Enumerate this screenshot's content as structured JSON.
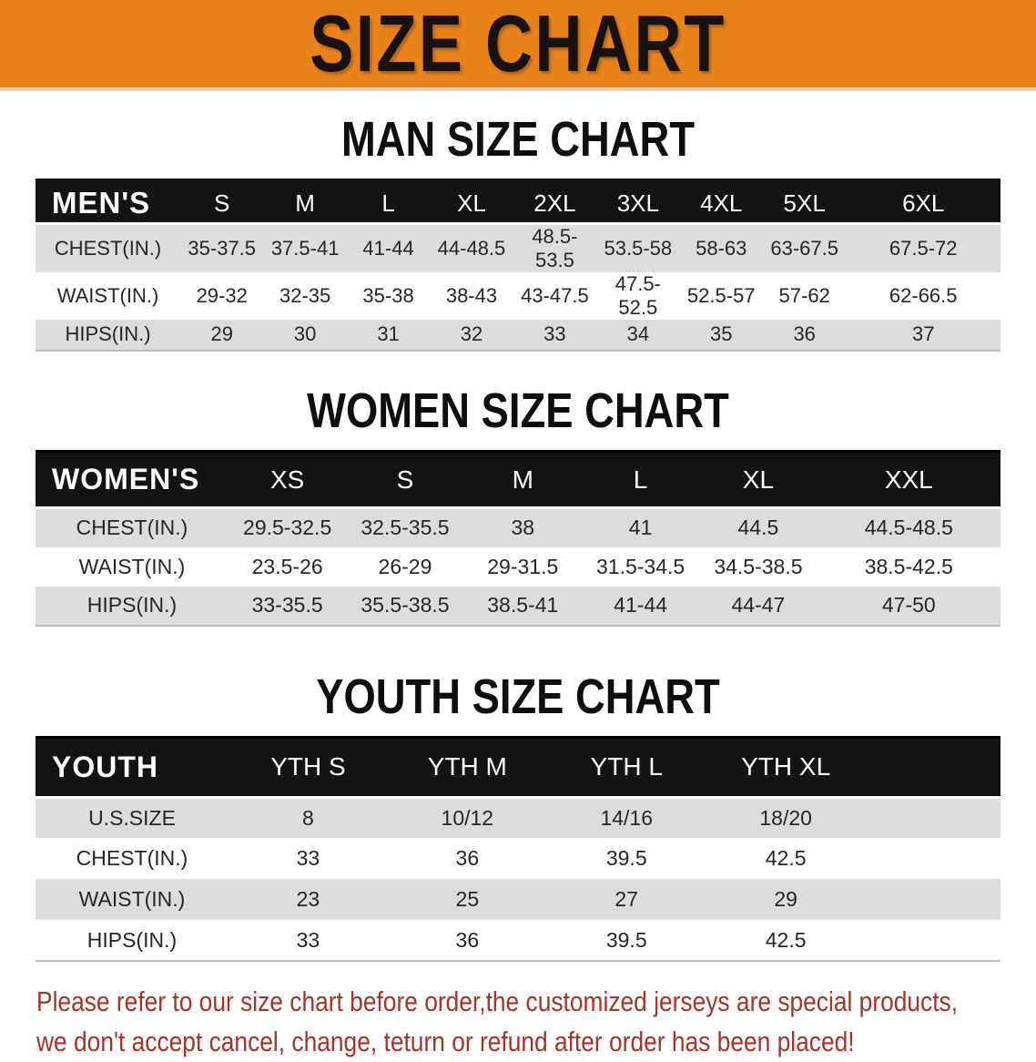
{
  "banner": {
    "title": "SIZE CHART"
  },
  "colors": {
    "banner_orange": "#E8831C",
    "header_black": "#141414",
    "row_gray": "#DCDCDC",
    "warning_red": "#A93226"
  },
  "sections": [
    {
      "heading": "MAN SIZE CHART",
      "table": {
        "corner": "MEN'S",
        "columns": [
          "S",
          "M",
          "L",
          "XL",
          "2XL",
          "3XL",
          "4XL",
          "5XL",
          "6XL"
        ],
        "rows": [
          {
            "label": "CHEST(IN.)",
            "values": [
              "35-37.5",
              "37.5-41",
              "41-44",
              "44-48.5",
              "48.5-53.5",
              "53.5-58",
              "58-63",
              "63-67.5",
              "67.5-72"
            ]
          },
          {
            "label": "WAIST(IN.)",
            "values": [
              "29-32",
              "32-35",
              "35-38",
              "38-43",
              "43-47.5",
              "47.5-52.5",
              "52.5-57",
              "57-62",
              "62-66.5"
            ]
          },
          {
            "label": "HIPS(IN.)",
            "values": [
              "29",
              "30",
              "31",
              "32",
              "33",
              "34",
              "35",
              "36",
              "37"
            ]
          }
        ]
      }
    },
    {
      "heading": "WOMEN SIZE CHART",
      "table": {
        "corner": "WOMEN'S",
        "columns": [
          "XS",
          "S",
          "M",
          "L",
          "XL",
          "XXL"
        ],
        "rows": [
          {
            "label": "CHEST(IN.)",
            "values": [
              "29.5-32.5",
              "32.5-35.5",
              "38",
              "41",
              "44.5",
              "44.5-48.5"
            ]
          },
          {
            "label": "WAIST(IN.)",
            "values": [
              "23.5-26",
              "26-29",
              "29-31.5",
              "31.5-34.5",
              "34.5-38.5",
              "38.5-42.5"
            ]
          },
          {
            "label": "HIPS(IN.)",
            "values": [
              "33-35.5",
              "35.5-38.5",
              "38.5-41",
              "41-44",
              "44-47",
              "47-50"
            ]
          }
        ]
      }
    },
    {
      "heading": "YOUTH SIZE CHART",
      "table": {
        "corner": "YOUTH",
        "columns": [
          "YTH S",
          "YTH M",
          "YTH L",
          "YTH XL"
        ],
        "rows": [
          {
            "label": "U.S.SIZE",
            "values": [
              "8",
              "10/12",
              "14/16",
              "18/20"
            ]
          },
          {
            "label": "CHEST(IN.)",
            "values": [
              "33",
              "36",
              "39.5",
              "42.5"
            ]
          },
          {
            "label": "WAIST(IN.)",
            "values": [
              "23",
              "25",
              "27",
              "29"
            ]
          },
          {
            "label": "HIPS(IN.)",
            "values": [
              "33",
              "36",
              "39.5",
              "42.5"
            ]
          }
        ]
      }
    }
  ],
  "footer": {
    "lines": [
      "Please refer to our size chart before order,the customized jerseys are special products,",
      "we don't accept cancel, change, teturn or refund after order has been placed!"
    ]
  }
}
